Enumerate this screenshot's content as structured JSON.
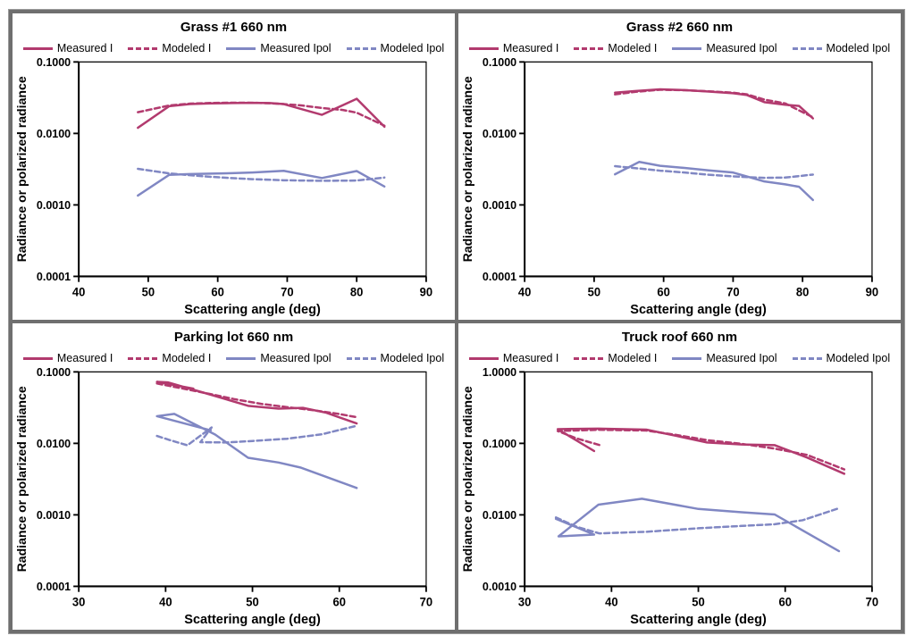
{
  "colors": {
    "crimson": "#b23a6e",
    "purple": "#8087c3",
    "axis": "#000000",
    "frame_gray": "#6f6f6f"
  },
  "chart_data": [
    {
      "type": "line",
      "title": "Grass #1 660 nm",
      "xlabel": "Scattering angle (deg)",
      "ylabel": "Radiance or polarized radiance",
      "xlim": [
        40,
        90
      ],
      "xticks": [
        40,
        50,
        60,
        70,
        80,
        90
      ],
      "yscale": "log",
      "ytop": 0.1,
      "ytick_labels": [
        "0.1000",
        "0.0100",
        "0.0010",
        "0.0001"
      ],
      "grid": false,
      "legend_position": "top",
      "series": [
        {
          "name": "Measured I",
          "color": "#b23a6e",
          "dash": false,
          "points": [
            [
              48.5,
              0.012
            ],
            [
              53,
              0.024
            ],
            [
              56,
              0.0257
            ],
            [
              59,
              0.0263
            ],
            [
              62,
              0.0266
            ],
            [
              65,
              0.0268
            ],
            [
              67.5,
              0.0266
            ],
            [
              69.5,
              0.0257
            ],
            [
              75,
              0.0182
            ],
            [
              80,
              0.0305
            ],
            [
              84,
              0.0124
            ]
          ]
        },
        {
          "name": "Modeled I",
          "color": "#b23a6e",
          "dash": true,
          "points": [
            [
              48.5,
              0.0198
            ],
            [
              53,
              0.0246
            ],
            [
              56,
              0.0261
            ],
            [
              59,
              0.0267
            ],
            [
              62,
              0.0269
            ],
            [
              65,
              0.0268
            ],
            [
              67.5,
              0.0264
            ],
            [
              69.5,
              0.0257
            ],
            [
              72,
              0.0247
            ],
            [
              75,
              0.0227
            ],
            [
              78,
              0.0213
            ],
            [
              80,
              0.0195
            ],
            [
              84,
              0.0128
            ]
          ]
        },
        {
          "name": "Measured Ipol",
          "color": "#8087c3",
          "dash": false,
          "points": [
            [
              48.5,
              0.00135
            ],
            [
              53,
              0.00263
            ],
            [
              56,
              0.0027
            ],
            [
              59,
              0.00274
            ],
            [
              62,
              0.00278
            ],
            [
              65,
              0.00284
            ],
            [
              69.5,
              0.003
            ],
            [
              75,
              0.00238
            ],
            [
              80,
              0.00298
            ],
            [
              84,
              0.00181
            ]
          ]
        },
        {
          "name": "Modeled Ipol",
          "color": "#8087c3",
          "dash": true,
          "points": [
            [
              48.5,
              0.0032
            ],
            [
              53,
              0.00276
            ],
            [
              56,
              0.0026
            ],
            [
              59,
              0.00247
            ],
            [
              62,
              0.00237
            ],
            [
              65,
              0.00229
            ],
            [
              69.5,
              0.00221
            ],
            [
              75,
              0.00217
            ],
            [
              80,
              0.00219
            ],
            [
              84,
              0.00241
            ]
          ]
        }
      ]
    },
    {
      "type": "line",
      "title": "Grass #2 660 nm",
      "xlabel": "Scattering angle (deg)",
      "ylabel": "Radiance or polarized radiance",
      "xlim": [
        40,
        90
      ],
      "xticks": [
        40,
        50,
        60,
        70,
        80,
        90
      ],
      "yscale": "log",
      "ytop": 0.1,
      "ytick_labels": [
        "0.1000",
        "0.0100",
        "0.0010",
        "0.0001"
      ],
      "grid": false,
      "legend_position": "top",
      "series": [
        {
          "name": "Measured I",
          "color": "#b23a6e",
          "dash": false,
          "points": [
            [
              53,
              0.0372
            ],
            [
              56,
              0.0393
            ],
            [
              59.5,
              0.0413
            ],
            [
              63,
              0.0404
            ],
            [
              66.5,
              0.0386
            ],
            [
              70,
              0.0366
            ],
            [
              72,
              0.0344
            ],
            [
              74.5,
              0.0274
            ],
            [
              77.5,
              0.0252
            ],
            [
              79.5,
              0.0242
            ],
            [
              81.5,
              0.0162
            ]
          ]
        },
        {
          "name": "Modeled I",
          "color": "#b23a6e",
          "dash": true,
          "points": [
            [
              53,
              0.0352
            ],
            [
              56,
              0.0383
            ],
            [
              59.5,
              0.0409
            ],
            [
              63,
              0.0403
            ],
            [
              66.5,
              0.0388
            ],
            [
              70,
              0.0371
            ],
            [
              72,
              0.0352
            ],
            [
              74.5,
              0.0297
            ],
            [
              77.5,
              0.0263
            ],
            [
              81.5,
              0.0168
            ]
          ]
        },
        {
          "name": "Measured Ipol",
          "color": "#8087c3",
          "dash": false,
          "points": [
            [
              53,
              0.00268
            ],
            [
              56.5,
              0.004
            ],
            [
              59.5,
              0.00352
            ],
            [
              63,
              0.00329
            ],
            [
              66.5,
              0.00304
            ],
            [
              70,
              0.00284
            ],
            [
              72,
              0.0025
            ],
            [
              74.5,
              0.00213
            ],
            [
              77.5,
              0.00194
            ],
            [
              79.5,
              0.00179
            ],
            [
              81.5,
              0.00117
            ]
          ]
        },
        {
          "name": "Modeled Ipol",
          "color": "#8087c3",
          "dash": true,
          "points": [
            [
              53,
              0.00348
            ],
            [
              56.5,
              0.00323
            ],
            [
              59.5,
              0.00301
            ],
            [
              63,
              0.00284
            ],
            [
              66.5,
              0.00264
            ],
            [
              70,
              0.00251
            ],
            [
              72,
              0.00245
            ],
            [
              74.5,
              0.00239
            ],
            [
              77.5,
              0.00241
            ],
            [
              81.5,
              0.00266
            ]
          ]
        }
      ]
    },
    {
      "type": "line",
      "title": "Parking lot 660 nm",
      "xlabel": "Scattering angle (deg)",
      "ylabel": "Radiance or polarized radiance",
      "xlim": [
        30,
        70
      ],
      "xticks": [
        30,
        40,
        50,
        60,
        70
      ],
      "yscale": "log",
      "ytop": 0.1,
      "ytick_labels": [
        "0.1000",
        "0.0100",
        "0.0010",
        "0.0001"
      ],
      "grid": false,
      "legend_position": "top",
      "series": [
        {
          "name": "Measured I",
          "color": "#b23a6e",
          "dash": false,
          "points": [
            [
              43.2,
              0.0582
            ],
            [
              39,
              0.0726
            ],
            [
              40.3,
              0.0712
            ],
            [
              45.5,
              0.0468
            ],
            [
              49.5,
              0.0335
            ],
            [
              53,
              0.0306
            ],
            [
              55.8,
              0.0314
            ],
            [
              58.5,
              0.0268
            ],
            [
              62,
              0.019
            ]
          ]
        },
        {
          "name": "Modeled I",
          "color": "#b23a6e",
          "dash": true,
          "points": [
            [
              39,
              0.069
            ],
            [
              42,
              0.0585
            ],
            [
              45,
              0.0494
            ],
            [
              48,
              0.0414
            ],
            [
              51,
              0.0357
            ],
            [
              54,
              0.0321
            ],
            [
              57,
              0.0291
            ],
            [
              60,
              0.0257
            ],
            [
              62,
              0.0232
            ]
          ]
        },
        {
          "name": "Measured Ipol",
          "color": "#8087c3",
          "dash": false,
          "points": [
            [
              45.2,
              0.0152
            ],
            [
              39,
              0.024
            ],
            [
              41,
              0.0259
            ],
            [
              45.7,
              0.0133
            ],
            [
              49.5,
              0.0063
            ],
            [
              53,
              0.0054
            ],
            [
              55.5,
              0.0046
            ],
            [
              62,
              0.00238
            ]
          ]
        },
        {
          "name": "Modeled Ipol",
          "color": "#8087c3",
          "dash": true,
          "points": [
            [
              39,
              0.0127
            ],
            [
              40.5,
              0.0111
            ],
            [
              42.5,
              0.0094
            ],
            [
              45.3,
              0.0167
            ],
            [
              44,
              0.0104
            ],
            [
              47,
              0.0103
            ],
            [
              50,
              0.0108
            ],
            [
              54,
              0.0116
            ],
            [
              58,
              0.0134
            ],
            [
              62,
              0.0176
            ]
          ]
        }
      ]
    },
    {
      "type": "line",
      "title": "Truck roof 660 nm",
      "xlabel": "Scattering angle (deg)",
      "ylabel": "Radiance or polarized radiance",
      "xlim": [
        30,
        70
      ],
      "xticks": [
        30,
        40,
        50,
        60,
        70
      ],
      "yscale": "log",
      "ytop": 1.0,
      "ytick_labels": [
        "1.0000",
        "0.1000",
        "0.0100",
        "0.0010"
      ],
      "grid": false,
      "legend_position": "top",
      "series": [
        {
          "name": "Measured I",
          "color": "#b23a6e",
          "dash": false,
          "points": [
            [
              38,
              0.078
            ],
            [
              36.3,
              0.104
            ],
            [
              33.8,
              0.158
            ],
            [
              38.5,
              0.161
            ],
            [
              44,
              0.156
            ],
            [
              47.5,
              0.127
            ],
            [
              51,
              0.103
            ],
            [
              55,
              0.0965
            ],
            [
              58.8,
              0.0945
            ],
            [
              62.5,
              0.0635
            ],
            [
              66.8,
              0.0375
            ]
          ]
        },
        {
          "name": "Modeled I",
          "color": "#b23a6e",
          "dash": true,
          "points": [
            [
              38.6,
              0.095
            ],
            [
              36,
              0.117
            ],
            [
              33.8,
              0.149
            ],
            [
              38.5,
              0.155
            ],
            [
              44,
              0.151
            ],
            [
              47.5,
              0.131
            ],
            [
              51,
              0.111
            ],
            [
              55,
              0.0985
            ],
            [
              58.8,
              0.0845
            ],
            [
              62.5,
              0.069
            ],
            [
              66.8,
              0.0432
            ]
          ]
        },
        {
          "name": "Measured Ipol",
          "color": "#8087c3",
          "dash": false,
          "points": [
            [
              33.6,
              0.0088
            ],
            [
              38,
              0.0053
            ],
            [
              33.9,
              0.005
            ],
            [
              38.5,
              0.0139
            ],
            [
              43.5,
              0.0168
            ],
            [
              50,
              0.0121
            ],
            [
              55,
              0.0109
            ],
            [
              58.8,
              0.0101
            ],
            [
              66.2,
              0.0031
            ]
          ]
        },
        {
          "name": "Modeled Ipol",
          "color": "#8087c3",
          "dash": true,
          "points": [
            [
              33.6,
              0.0092
            ],
            [
              36,
              0.0068
            ],
            [
              38.6,
              0.0055
            ],
            [
              44,
              0.0058
            ],
            [
              50,
              0.0065
            ],
            [
              55,
              0.007
            ],
            [
              58.8,
              0.0074
            ],
            [
              62,
              0.0084
            ],
            [
              66.2,
              0.0124
            ]
          ]
        }
      ]
    }
  ]
}
